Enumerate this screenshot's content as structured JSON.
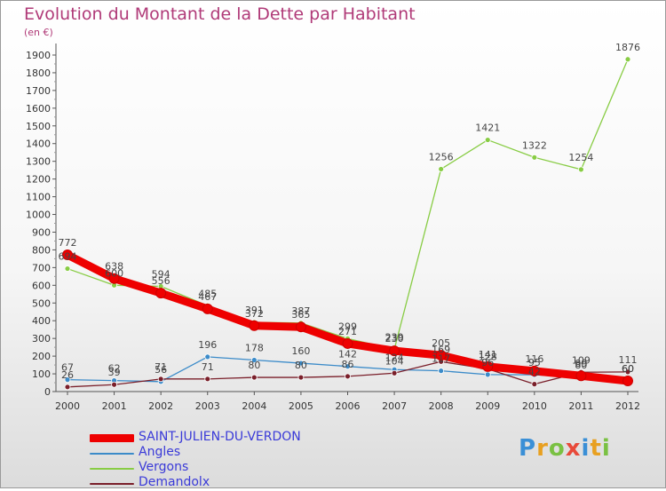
{
  "title": "Evolution du Montant de la Dette par Habitant",
  "unit_label": "(en €)",
  "logo": {
    "text": "Proxiti",
    "letters": [
      "P",
      "r",
      "o",
      "x",
      "i",
      "t",
      "i"
    ],
    "colors": [
      "#3a8fd6",
      "#e8a020",
      "#7ac143",
      "#e84a3a",
      "#3a8fd6",
      "#e8a020",
      "#7ac143"
    ]
  },
  "chart_data": {
    "type": "line",
    "categories": [
      "2000",
      "2001",
      "2002",
      "2003",
      "2004",
      "2005",
      "2006",
      "2007",
      "2008",
      "2009",
      "2010",
      "2011",
      "2012"
    ],
    "ylim": [
      0,
      1900
    ],
    "yticks": [
      0,
      100,
      200,
      300,
      400,
      500,
      600,
      700,
      800,
      900,
      1000,
      1100,
      1200,
      1300,
      1400,
      1500,
      1600,
      1700,
      1800,
      1900
    ],
    "grid": false,
    "legend_position": "bottom-left",
    "series": [
      {
        "name": "SAINT-JULIEN-DU-VERDON",
        "color": "#ee0000",
        "values": [
          772,
          638,
          556,
          467,
          372,
          365,
          271,
          230,
          205,
          141,
          116,
          89,
          60
        ]
      },
      {
        "name": "Angles",
        "color": "#3b8bc9",
        "values": [
          67,
          62,
          56,
          196,
          178,
          160,
          142,
          124,
          117,
          96,
          95,
          80,
          60
        ]
      },
      {
        "name": "Vergons",
        "color": "#88cc44",
        "values": [
          694,
          600,
          594,
          485,
          391,
          387,
          299,
          239,
          1256,
          1421,
          1322,
          1254,
          1876
        ]
      },
      {
        "name": "Demandolx",
        "color": "#7a1f2a",
        "values": [
          26,
          39,
          71,
          71,
          80,
          80,
          86,
          104,
          169,
          128,
          42,
          109,
          111
        ]
      }
    ],
    "data_labels": [
      [
        772,
        638,
        556,
        467,
        372,
        365,
        271,
        230,
        205,
        141,
        116,
        89,
        60
      ],
      [
        67,
        62,
        56,
        196,
        178,
        160,
        142,
        124,
        117,
        96,
        95,
        80,
        60
      ],
      [
        694,
        600,
        594,
        485,
        391,
        387,
        299,
        239,
        1256,
        1421,
        1322,
        1254,
        1876
      ],
      [
        26,
        39,
        71,
        71,
        80,
        80,
        86,
        104,
        169,
        128,
        42,
        109,
        111
      ]
    ]
  }
}
